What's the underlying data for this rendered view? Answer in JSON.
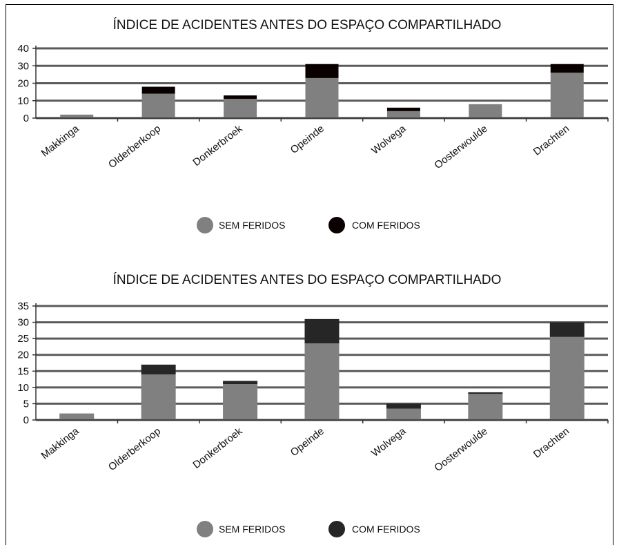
{
  "chart_data": [
    {
      "type": "bar",
      "stacked": true,
      "title": "ÍNDICE DE ACIDENTES ANTES DO ESPAÇO COMPARTILHADO",
      "categories": [
        "Makkinga",
        "Olderberkoop",
        "Donkerbroek",
        "Opeinde",
        "Wolvega",
        "Oosterwoulde",
        "Drachten"
      ],
      "series": [
        {
          "name": "SEM FERIDOS",
          "color": "#808080",
          "values": [
            2,
            14,
            11,
            23,
            4,
            8,
            26
          ]
        },
        {
          "name": "COM FERIDOS",
          "color": "#0a0000",
          "values": [
            0,
            4,
            2,
            8,
            2,
            0,
            5
          ]
        }
      ],
      "ylim": [
        0,
        40
      ],
      "yticks": [
        0,
        10,
        20,
        30,
        40
      ],
      "grid": true,
      "legend": "bottom"
    },
    {
      "type": "bar",
      "stacked": true,
      "title": "ÍNDICE DE ACIDENTES ANTES DO ESPAÇO COMPARTILHADO",
      "categories": [
        "Makkinga",
        "Olderberkoop",
        "Donkerbroek",
        "Opeinde",
        "Wolvega",
        "Oosterwoulde",
        "Drachten"
      ],
      "series": [
        {
          "name": "SEM FERIDOS",
          "color": "#808080",
          "values": [
            2,
            14,
            11,
            23.5,
            3.5,
            8,
            25.5
          ]
        },
        {
          "name": "COM FERIDOS",
          "color": "#262626",
          "values": [
            0,
            3,
            1,
            7.5,
            1.5,
            0.5,
            4.5
          ]
        }
      ],
      "ylim": [
        0,
        35
      ],
      "yticks": [
        0,
        5,
        10,
        15,
        20,
        25,
        30,
        35
      ],
      "grid": true,
      "legend": "bottom"
    }
  ]
}
